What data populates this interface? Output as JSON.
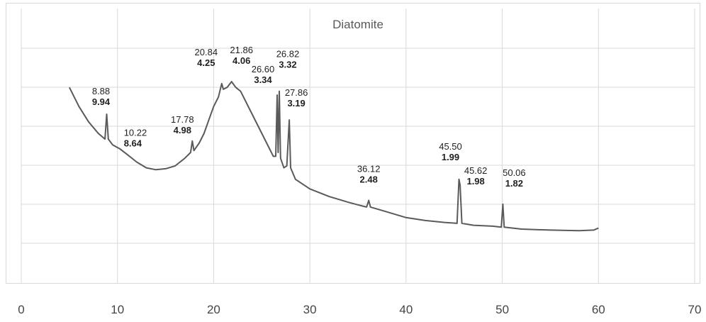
{
  "chart_data": {
    "type": "line",
    "title": "Diatomite",
    "xlabel": "",
    "ylabel": "",
    "xlim": [
      0,
      70
    ],
    "x_ticks": [
      "0",
      "10",
      "20",
      "30",
      "40",
      "50",
      "60",
      "70"
    ],
    "ylim": [
      0,
      100
    ],
    "y_ticks_labeled": false,
    "grid": true,
    "legend": "none",
    "line_color": "#5a5a5a",
    "series": [
      {
        "values": [
          [
            5.0,
            84
          ],
          [
            6.0,
            74
          ],
          [
            7.0,
            66
          ],
          [
            8.0,
            60
          ],
          [
            8.7,
            57
          ],
          [
            8.88,
            70
          ],
          [
            9.05,
            57
          ],
          [
            9.5,
            54
          ],
          [
            10.22,
            52
          ],
          [
            11.0,
            49
          ],
          [
            12.0,
            45
          ],
          [
            13.0,
            42
          ],
          [
            14.0,
            41
          ],
          [
            15.0,
            41.5
          ],
          [
            16.0,
            43
          ],
          [
            17.0,
            47
          ],
          [
            17.6,
            50
          ],
          [
            17.78,
            56
          ],
          [
            17.95,
            51
          ],
          [
            18.5,
            55
          ],
          [
            19.0,
            60
          ],
          [
            19.5,
            67
          ],
          [
            20.0,
            74
          ],
          [
            20.5,
            79
          ],
          [
            20.84,
            86
          ],
          [
            21.0,
            83
          ],
          [
            21.4,
            84
          ],
          [
            21.86,
            87
          ],
          [
            22.3,
            84
          ],
          [
            22.8,
            82
          ],
          [
            23.5,
            75
          ],
          [
            24.5,
            65
          ],
          [
            25.5,
            55
          ],
          [
            26.2,
            48
          ],
          [
            26.45,
            48
          ],
          [
            26.6,
            80
          ],
          [
            26.7,
            50
          ],
          [
            26.82,
            82
          ],
          [
            26.95,
            47
          ],
          [
            27.3,
            42
          ],
          [
            27.6,
            43
          ],
          [
            27.86,
            67
          ],
          [
            28.0,
            42
          ],
          [
            28.5,
            36
          ],
          [
            30.0,
            31
          ],
          [
            32.0,
            27
          ],
          [
            34.0,
            24
          ],
          [
            35.5,
            22
          ],
          [
            35.9,
            21.5
          ],
          [
            36.12,
            25
          ],
          [
            36.3,
            21.5
          ],
          [
            38.0,
            19
          ],
          [
            40.0,
            16
          ],
          [
            42.0,
            14.5
          ],
          [
            44.0,
            13.5
          ],
          [
            45.3,
            13
          ],
          [
            45.5,
            36
          ],
          [
            45.62,
            33
          ],
          [
            45.8,
            13
          ],
          [
            47.0,
            12
          ],
          [
            49.0,
            11.5
          ],
          [
            49.9,
            11
          ],
          [
            50.06,
            23
          ],
          [
            50.2,
            11
          ],
          [
            52.0,
            10
          ],
          [
            55.0,
            9.5
          ],
          [
            58.0,
            9.2
          ],
          [
            59.5,
            9.5
          ],
          [
            60.0,
            10.5
          ]
        ]
      }
    ],
    "annotations": [
      {
        "x": 8.88,
        "y": 70,
        "angle": "8.88",
        "d": "9.94"
      },
      {
        "x": 10.22,
        "y": 52,
        "angle": "10.22",
        "d": "8.64"
      },
      {
        "x": 17.78,
        "y": 56,
        "angle": "17.78",
        "d": "4.98"
      },
      {
        "x": 20.84,
        "y": 86,
        "angle": "20.84",
        "d": "4.25"
      },
      {
        "x": 21.86,
        "y": 87,
        "angle": "21.86",
        "d": "4.06"
      },
      {
        "x": 26.6,
        "y": 80,
        "angle": "26.60",
        "d": "3.34"
      },
      {
        "x": 26.82,
        "y": 82,
        "angle": "26.82",
        "d": "3.32"
      },
      {
        "x": 27.86,
        "y": 67,
        "angle": "27.86",
        "d": "3.19"
      },
      {
        "x": 36.12,
        "y": 25,
        "angle": "36.12",
        "d": "2.48"
      },
      {
        "x": 45.5,
        "y": 36,
        "angle": "45.50",
        "d": "1.99"
      },
      {
        "x": 45.62,
        "y": 33,
        "angle": "45.62",
        "d": "1.98"
      },
      {
        "x": 50.06,
        "y": 23,
        "angle": "50.06",
        "d": "1.82"
      }
    ]
  }
}
